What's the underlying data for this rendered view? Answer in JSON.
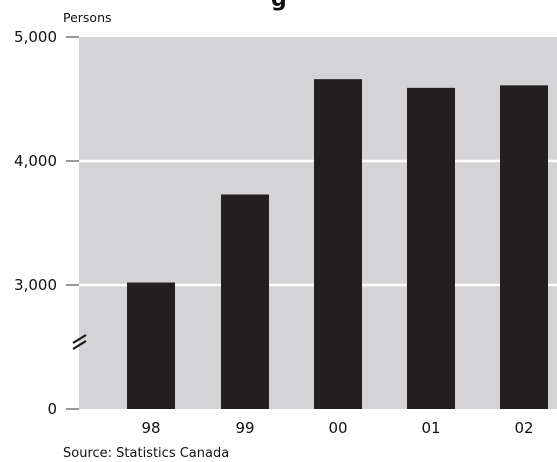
{
  "chart_data": {
    "type": "bar",
    "title_fragment": "g",
    "ylabel": "Persons",
    "categories": [
      "98",
      "99",
      "00",
      "01",
      "02"
    ],
    "values": [
      3020,
      3730,
      4660,
      4590,
      4610
    ],
    "y_ticks": [
      "0",
      "3,000",
      "4,000",
      "5,000"
    ],
    "ylim": [
      2200,
      5000
    ],
    "axis_break": true,
    "grid": true,
    "source": "Source: Statistics Canada",
    "colors": {
      "plot_bg": "#d4d4d6",
      "bar": "#231f20",
      "grid": "#ffffff"
    }
  }
}
